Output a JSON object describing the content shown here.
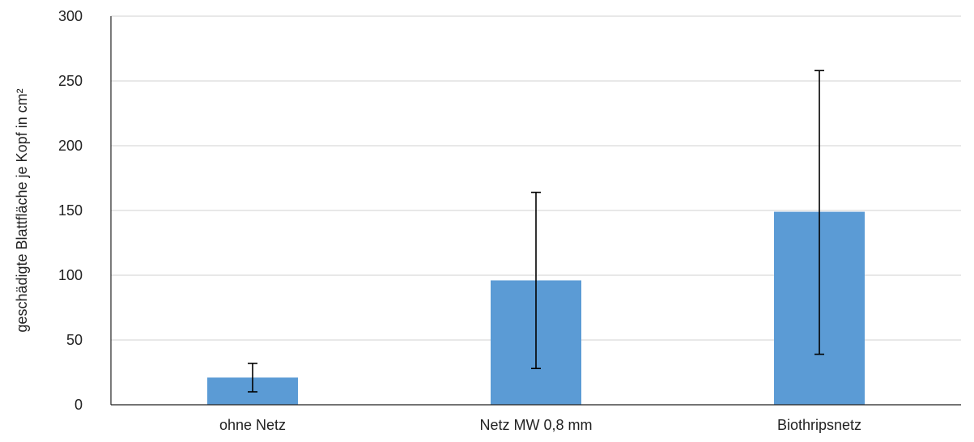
{
  "chart_data": {
    "type": "bar",
    "title": "",
    "xlabel": "",
    "ylabel": "geschädigte Blattfläche je Kopf in cm²",
    "ylim": [
      0,
      300
    ],
    "yticks": [
      0,
      50,
      100,
      150,
      200,
      250,
      300
    ],
    "grid": true,
    "bar_color": "#5b9bd5",
    "categories": [
      "ohne Netz",
      "Netz MW 0,8 mm",
      "Biothripsnetz"
    ],
    "values": [
      21,
      96,
      149
    ],
    "error_low": [
      10,
      28,
      39
    ],
    "error_high": [
      32,
      164,
      258
    ]
  }
}
